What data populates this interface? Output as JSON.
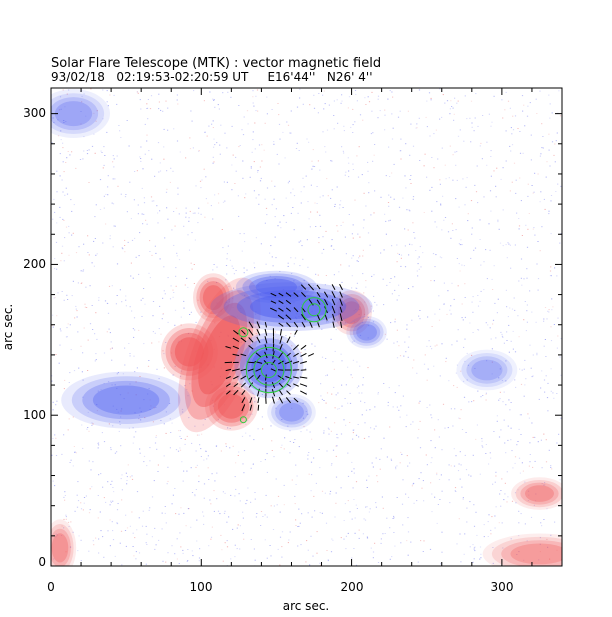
{
  "chart_data": {
    "type": "heatmap",
    "title": "Solar Flare Telescope (MTK) : vector magnetic field",
    "subtitle": "93/02/18   02:19:53-02:20:59 UT     E16'44''   N26' 4''",
    "xlabel": "arc sec.",
    "ylabel": "arc sec.",
    "xlim": [
      0,
      340
    ],
    "ylim": [
      0,
      317
    ],
    "xticks": [
      "0",
      "100",
      "200",
      "300"
    ],
    "yticks": [
      "0",
      "100",
      "200",
      "300"
    ],
    "grid": false,
    "colors": {
      "positive_polarity": "#f0585a",
      "negative_polarity": "#5060f0",
      "field_vectors": "#000000",
      "contours": "#2ecc40"
    },
    "regions": [
      {
        "polarity": "positive",
        "x": 112,
        "y": 140,
        "rx": 16,
        "ry": 40,
        "rot": 20,
        "strength": 1.0
      },
      {
        "polarity": "positive",
        "x": 92,
        "y": 142,
        "rx": 14,
        "ry": 14,
        "rot": 0,
        "strength": 0.95
      },
      {
        "polarity": "positive",
        "x": 120,
        "y": 106,
        "rx": 13,
        "ry": 12,
        "rot": 0,
        "strength": 0.9
      },
      {
        "polarity": "positive",
        "x": 108,
        "y": 178,
        "rx": 10,
        "ry": 12,
        "rot": 0,
        "strength": 0.85
      },
      {
        "polarity": "positive",
        "x": 200,
        "y": 168,
        "rx": 10,
        "ry": 11,
        "rot": 0,
        "strength": 0.75
      },
      {
        "polarity": "negative",
        "x": 145,
        "y": 133,
        "rx": 17,
        "ry": 16,
        "rot": 0,
        "strength": 1.0
      },
      {
        "polarity": "negative",
        "x": 160,
        "y": 172,
        "rx": 40,
        "ry": 12,
        "rot": 0,
        "strength": 0.9
      },
      {
        "polarity": "negative",
        "x": 150,
        "y": 185,
        "rx": 20,
        "ry": 8,
        "rot": 0,
        "strength": 0.8
      },
      {
        "polarity": "negative",
        "x": 50,
        "y": 110,
        "rx": 32,
        "ry": 14,
        "rot": 0,
        "strength": 0.6
      },
      {
        "polarity": "negative",
        "x": 160,
        "y": 102,
        "rx": 12,
        "ry": 9,
        "rot": 0,
        "strength": 0.5
      },
      {
        "polarity": "negative",
        "x": 210,
        "y": 155,
        "rx": 10,
        "ry": 8,
        "rot": 0,
        "strength": 0.55
      },
      {
        "polarity": "negative",
        "x": 290,
        "y": 130,
        "rx": 15,
        "ry": 10,
        "rot": 0,
        "strength": 0.4
      },
      {
        "polarity": "negative",
        "x": 15,
        "y": 300,
        "rx": 18,
        "ry": 12,
        "rot": 0,
        "strength": 0.45
      },
      {
        "polarity": "positive",
        "x": 325,
        "y": 48,
        "rx": 14,
        "ry": 8,
        "rot": 0,
        "strength": 0.55
      },
      {
        "polarity": "positive",
        "x": 325,
        "y": 8,
        "rx": 28,
        "ry": 10,
        "rot": 0,
        "strength": 0.5
      },
      {
        "polarity": "positive",
        "x": 6,
        "y": 12,
        "rx": 8,
        "ry": 14,
        "rot": 0,
        "strength": 0.55
      }
    ],
    "contours": [
      {
        "x": 145,
        "y": 130,
        "radii": [
          5,
          10,
          15
        ]
      },
      {
        "x": 175,
        "y": 170,
        "radii": [
          4,
          8
        ]
      },
      {
        "x": 128,
        "y": 155,
        "radii": [
          3
        ]
      },
      {
        "x": 128,
        "y": 97,
        "radii": [
          2
        ]
      }
    ]
  }
}
